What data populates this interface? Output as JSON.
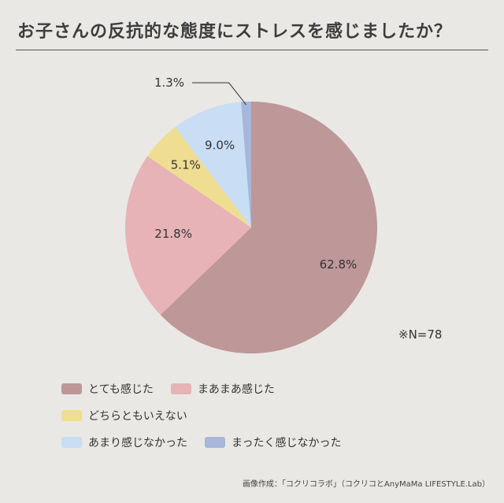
{
  "title": "お子さんの反抗的な態度にストレスを感じましたか？",
  "note": "※N=78",
  "credit": "画像作成：「コクリコラボ」（コクリコとAnyMaMa LIFESTYLE.Lab）",
  "chart_data": {
    "type": "pie",
    "title": "お子さんの反抗的な態度にストレスを感じましたか？",
    "slices": [
      {
        "label": "とても感じた",
        "value": 62.8,
        "display": "62.8%",
        "color": "#be9798"
      },
      {
        "label": "まあまあ感じた",
        "value": 21.8,
        "display": "21.8%",
        "color": "#e7b3b6"
      },
      {
        "label": "どちらともいえない",
        "value": 5.1,
        "display": "5.1%",
        "color": "#efdd91"
      },
      {
        "label": "あまり感じなかった",
        "value": 9.0,
        "display": "9.0%",
        "color": "#c9ddf5"
      },
      {
        "label": "まったく感じなかった",
        "value": 1.3,
        "display": "1.3%",
        "color": "#a6b7d9"
      }
    ],
    "sample_size": "N=78"
  }
}
